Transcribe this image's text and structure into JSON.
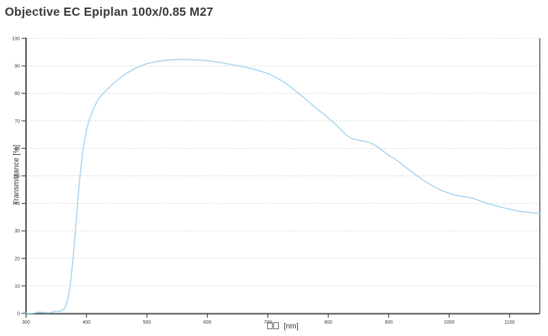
{
  "chart_data": {
    "type": "line",
    "title": "Objective EC Epiplan 100x/0.85 M27",
    "ylabel": "Transmittance [%]",
    "xlabel": {
      "missing_glyph_count": 2,
      "suffix": "[nm]"
    },
    "xlim": [
      300,
      1150
    ],
    "ylim": [
      0,
      100
    ],
    "x_ticks": [
      300,
      400,
      500,
      600,
      700,
      800,
      900,
      1000,
      1100
    ],
    "y_ticks": [
      0,
      10,
      20,
      30,
      40,
      50,
      60,
      70,
      80,
      90,
      100
    ],
    "grid": "horizontal-dashed",
    "legend": "none",
    "series": [
      {
        "name": "transmittance",
        "color": "#a6d4ef",
        "points": [
          [
            300,
            0
          ],
          [
            310,
            0
          ],
          [
            316,
            0.2
          ],
          [
            320,
            0.5
          ],
          [
            324,
            0.3
          ],
          [
            328,
            0.5
          ],
          [
            332,
            0.2
          ],
          [
            336,
            0.3
          ],
          [
            340,
            0.2
          ],
          [
            344,
            0.5
          ],
          [
            348,
            0.8
          ],
          [
            352,
            0.6
          ],
          [
            356,
            0.8
          ],
          [
            360,
            1.2
          ],
          [
            364,
            2
          ],
          [
            367,
            3.5
          ],
          [
            370,
            6
          ],
          [
            373,
            10
          ],
          [
            376,
            16
          ],
          [
            379,
            23
          ],
          [
            382,
            31
          ],
          [
            385,
            39
          ],
          [
            388,
            47
          ],
          [
            391,
            53.5
          ],
          [
            394,
            59
          ],
          [
            397,
            63
          ],
          [
            400,
            66.5
          ],
          [
            404,
            70
          ],
          [
            408,
            72.5
          ],
          [
            412,
            74.6
          ],
          [
            416,
            76.4
          ],
          [
            420,
            77.9
          ],
          [
            425,
            79.4
          ],
          [
            430,
            80.5
          ],
          [
            435,
            81.6
          ],
          [
            440,
            82.7
          ],
          [
            445,
            83.7
          ],
          [
            450,
            84.6
          ],
          [
            455,
            85.5
          ],
          [
            460,
            86.3
          ],
          [
            465,
            87.1
          ],
          [
            470,
            87.8
          ],
          [
            475,
            88.4
          ],
          [
            480,
            89
          ],
          [
            485,
            89.5
          ],
          [
            490,
            90
          ],
          [
            495,
            90.4
          ],
          [
            500,
            90.8
          ],
          [
            510,
            91.3
          ],
          [
            520,
            91.7
          ],
          [
            530,
            92
          ],
          [
            540,
            92.2
          ],
          [
            550,
            92.3
          ],
          [
            560,
            92.4
          ],
          [
            570,
            92.3
          ],
          [
            580,
            92.2
          ],
          [
            590,
            92.1
          ],
          [
            600,
            91.9
          ],
          [
            610,
            91.6
          ],
          [
            620,
            91.3
          ],
          [
            630,
            90.9
          ],
          [
            640,
            90.5
          ],
          [
            650,
            90.1
          ],
          [
            660,
            89.7
          ],
          [
            670,
            89.2
          ],
          [
            680,
            88.6
          ],
          [
            690,
            88
          ],
          [
            700,
            87.2
          ],
          [
            710,
            86.2
          ],
          [
            720,
            85
          ],
          [
            730,
            83.6
          ],
          [
            740,
            82
          ],
          [
            750,
            80.2
          ],
          [
            760,
            78.4
          ],
          [
            770,
            76.5
          ],
          [
            780,
            74.7
          ],
          [
            790,
            72.9
          ],
          [
            800,
            71.1
          ],
          [
            810,
            69.2
          ],
          [
            820,
            67
          ],
          [
            830,
            64.8
          ],
          [
            840,
            63.5
          ],
          [
            850,
            63
          ],
          [
            860,
            62.6
          ],
          [
            870,
            62
          ],
          [
            880,
            60.8
          ],
          [
            890,
            59.2
          ],
          [
            900,
            57.5
          ],
          [
            910,
            56.2
          ],
          [
            920,
            54.6
          ],
          [
            930,
            52.8
          ],
          [
            940,
            51.2
          ],
          [
            950,
            49.5
          ],
          [
            960,
            48
          ],
          [
            970,
            46.7
          ],
          [
            980,
            45.5
          ],
          [
            990,
            44.5
          ],
          [
            1000,
            43.7
          ],
          [
            1010,
            43
          ],
          [
            1020,
            42.6
          ],
          [
            1030,
            42.3
          ],
          [
            1040,
            41.8
          ],
          [
            1050,
            41
          ],
          [
            1060,
            40.2
          ],
          [
            1070,
            39.6
          ],
          [
            1080,
            39
          ],
          [
            1090,
            38.4
          ],
          [
            1100,
            37.9
          ],
          [
            1110,
            37.4
          ],
          [
            1120,
            37
          ],
          [
            1130,
            36.8
          ],
          [
            1140,
            36.5
          ],
          [
            1150,
            36.3
          ]
        ]
      }
    ]
  },
  "colors": {
    "axis": "#484848",
    "grid": "#c6c6c6",
    "tick_text": "#3a3a3a",
    "curve": "#a6d4ef",
    "background": "#ffffff"
  }
}
